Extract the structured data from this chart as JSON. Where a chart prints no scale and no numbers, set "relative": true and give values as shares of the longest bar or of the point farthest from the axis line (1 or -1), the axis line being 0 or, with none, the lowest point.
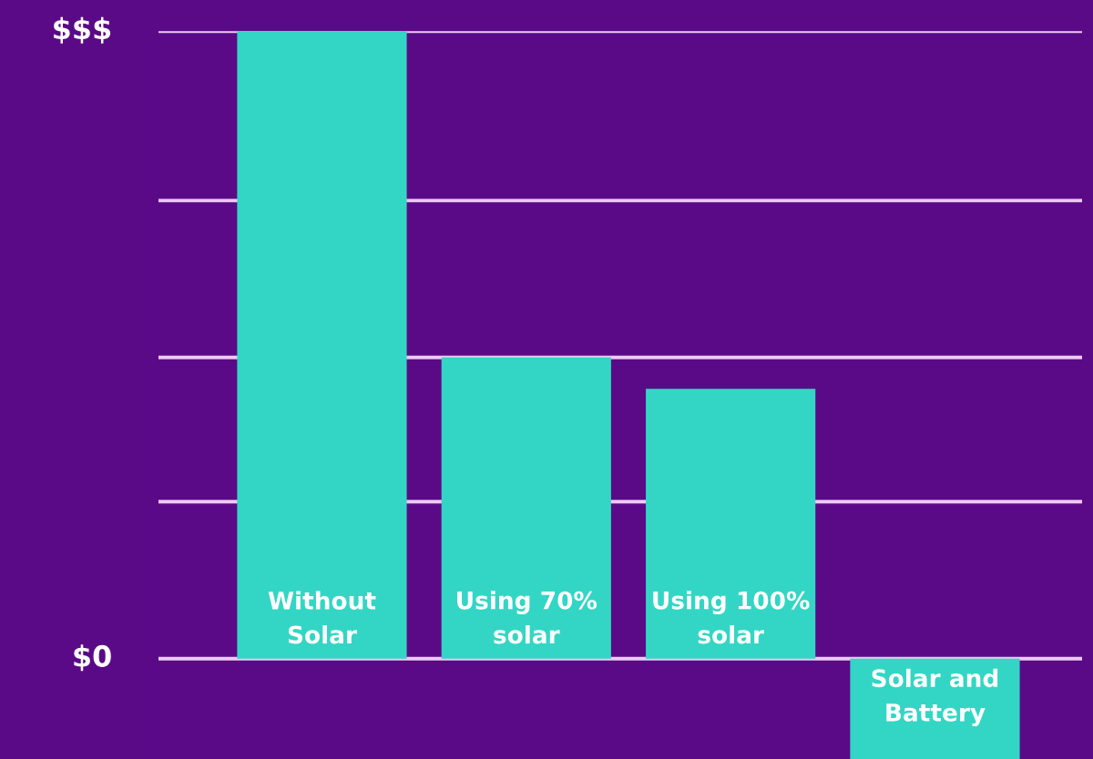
{
  "chart_data": {
    "type": "bar",
    "relative": true,
    "categories": [
      "Without Solar",
      "Using 70% solar",
      "Using 100% solar",
      "Solar and Battery"
    ],
    "values": [
      1,
      0.48,
      0.43,
      -0.16
    ],
    "color": "#33d6c4",
    "ref_lines": [
      {
        "axis": "y",
        "value": 0,
        "color": "#ecc9f2",
        "label": "$0"
      },
      {
        "axis": "y",
        "value": 0.25,
        "color": "#ecc9f2"
      },
      {
        "axis": "y",
        "value": 0.48,
        "color": "#ecc9f2"
      },
      {
        "axis": "y",
        "value": 0.73,
        "color": "#ecc9f2"
      },
      {
        "axis": "y",
        "value": 1,
        "color": "#ecc9f2",
        "label": "$$$"
      }
    ]
  }
}
